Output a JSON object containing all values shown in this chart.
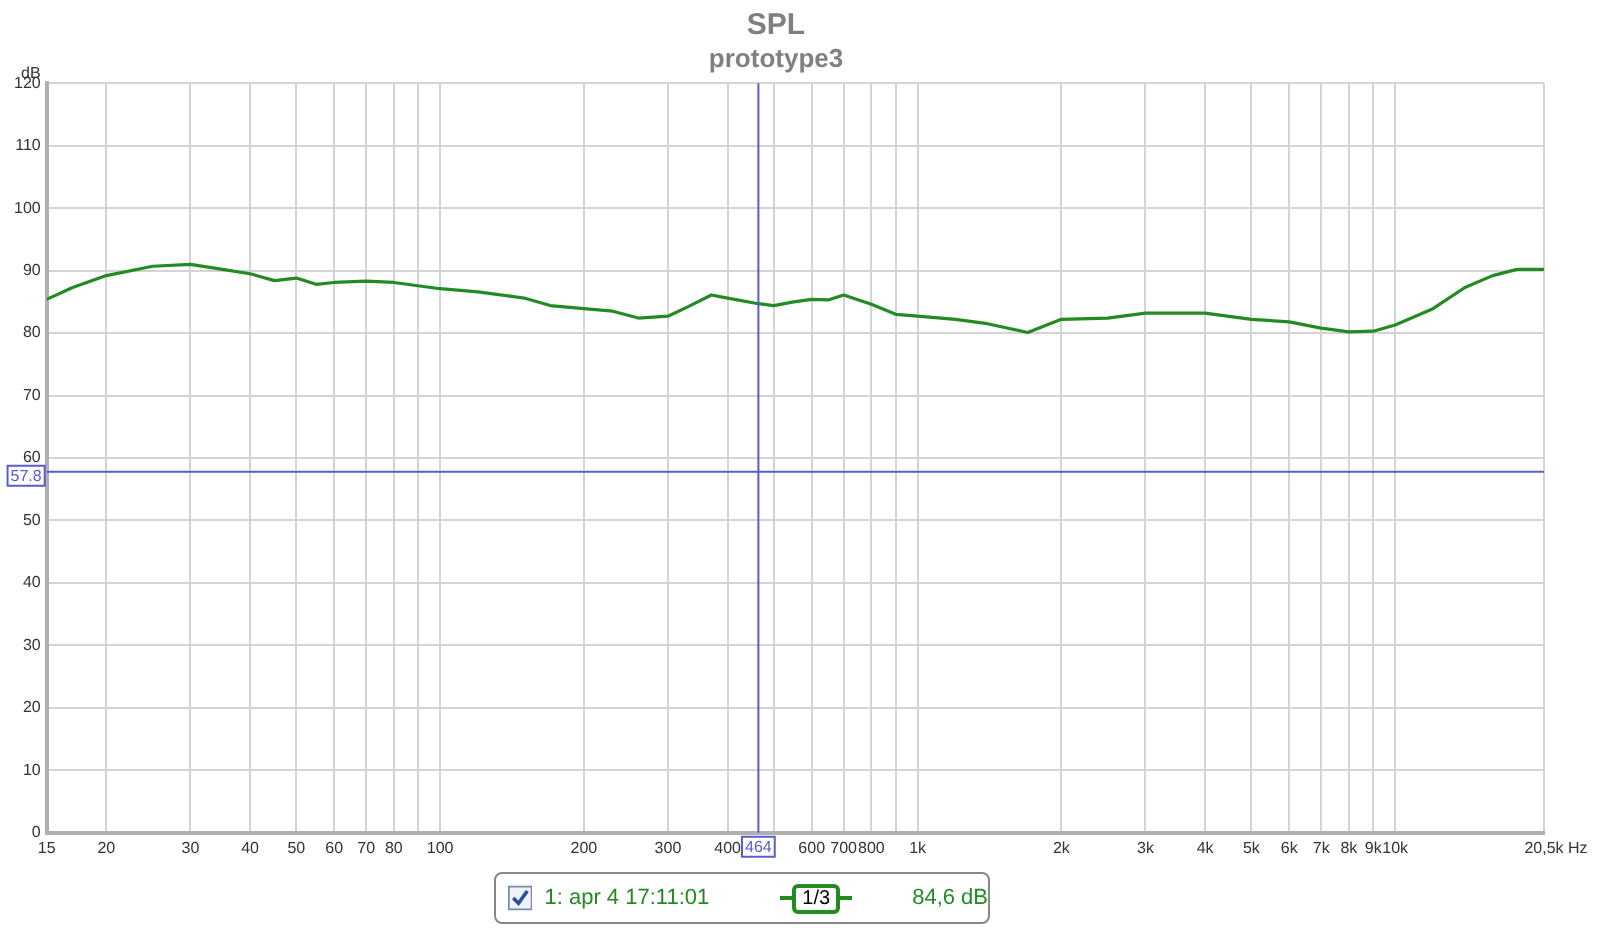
{
  "chart_data": {
    "type": "line",
    "title": "SPL",
    "subtitle": "prototype3",
    "xlabel": "Hz",
    "ylabel": "dB",
    "log": "x",
    "grid": true,
    "legend": "bottom",
    "marker": "none",
    "line_style": "solid",
    "xlim": [
      15,
      20500
    ],
    "xticks": [
      15,
      20,
      30,
      40,
      50,
      60,
      70,
      80,
      {
        "value": 90,
        "label": null
      },
      100,
      200,
      300,
      400,
      {
        "value": 500,
        "label": null
      },
      600,
      700,
      800,
      {
        "value": 900,
        "label": null
      },
      {
        "value": 1000,
        "label": "1k"
      },
      {
        "value": 2000,
        "label": "2k"
      },
      {
        "value": 3000,
        "label": "3k"
      },
      {
        "value": 4000,
        "label": "4k"
      },
      {
        "value": 5000,
        "label": "5k"
      },
      {
        "value": 6000,
        "label": "6k"
      },
      {
        "value": 7000,
        "label": "7k"
      },
      {
        "value": 8000,
        "label": "8k"
      },
      {
        "value": 9000,
        "label": "9k"
      },
      {
        "value": 10000,
        "label": "10k"
      },
      {
        "value": 20500,
        "label": "20,5k"
      }
    ],
    "ylim": [
      0,
      120
    ],
    "yticks": [
      0,
      10,
      20,
      30,
      40,
      50,
      60,
      70,
      80,
      90,
      100,
      110,
      120
    ],
    "ref_lines": [
      {
        "axis": "x",
        "value": 464,
        "label": "464",
        "color": "#5a5ad2"
      },
      {
        "axis": "y",
        "value": 57.8,
        "label": "57.8",
        "color": "#5a5ad2"
      }
    ],
    "annotations": [
      "1/3",
      "84,6 dB"
    ],
    "series": [
      {
        "name": "1: apr 4 17:11:01",
        "color": "#228b22",
        "x": [
          15,
          17,
          20,
          25,
          30,
          35,
          40,
          45,
          50,
          55,
          60,
          70,
          80,
          100,
          120,
          150,
          170,
          200,
          230,
          260,
          300,
          330,
          370,
          400,
          464,
          500,
          550,
          600,
          650,
          700,
          800,
          900,
          1000,
          1200,
          1400,
          1700,
          2000,
          2500,
          3000,
          4000,
          5000,
          6000,
          7000,
          8000,
          9000,
          10000,
          12000,
          14000,
          16000,
          18000,
          20500
        ],
        "values": [
          85.4,
          87.3,
          89.2,
          90.7,
          91.0,
          90.2,
          89.5,
          88.4,
          88.8,
          87.8,
          88.1,
          88.3,
          88.1,
          87.1,
          86.6,
          85.6,
          84.4,
          83.9,
          83.5,
          82.4,
          82.7,
          84.2,
          86.1,
          85.6,
          84.7,
          84.4,
          85.0,
          85.4,
          85.3,
          86.1,
          84.6,
          83.0,
          82.7,
          82.2,
          81.5,
          80.1,
          82.2,
          82.4,
          83.2,
          83.2,
          82.2,
          81.8,
          80.8,
          80.2,
          80.3,
          81.3,
          83.9,
          87.3,
          89.2,
          90.2,
          90.2
        ]
      }
    ]
  }
}
